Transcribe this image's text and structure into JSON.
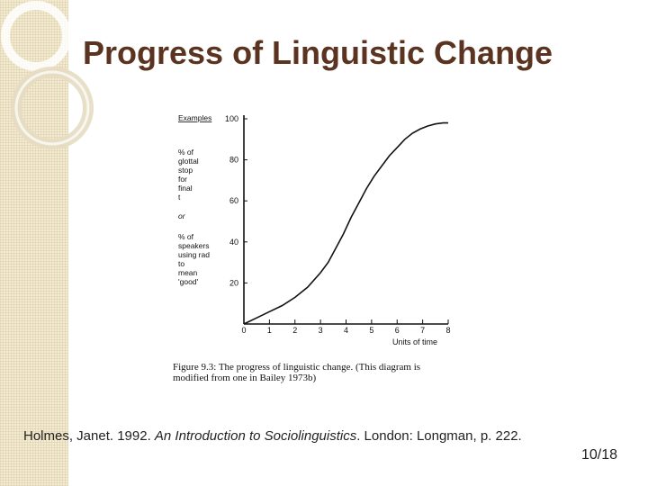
{
  "slide": {
    "title": "Progress of Linguistic Change",
    "page_number": "10/18"
  },
  "figure": {
    "ylabel_head": "Examples",
    "ylabel_lines_a": [
      "% of",
      "glottal",
      "stop",
      "for",
      "final",
      "t"
    ],
    "ylabel_or": "or",
    "ylabel_lines_b": [
      "% of",
      "speakers",
      "using rad",
      "to",
      "mean",
      "'good'"
    ],
    "caption_line1": "Figure 9.3:  The progress of linguistic change.  (This diagram is",
    "caption_line2": "modified from one in Bailey 1973b)"
  },
  "citation": {
    "before": "Holmes, Janet. 1992. ",
    "title": "An Introduction to Sociolinguistics",
    "after": ". London: Longman, p. 222."
  },
  "chart_data": {
    "type": "line",
    "xlabel": "Units of time",
    "ylabel": "Examples",
    "xlim": [
      0,
      8
    ],
    "ylim": [
      0,
      100
    ],
    "x_ticks": [
      0,
      1,
      2,
      3,
      4,
      5,
      6,
      7,
      8
    ],
    "y_ticks": [
      0,
      20,
      40,
      60,
      80,
      100
    ],
    "series": [
      {
        "x": [
          0,
          0.5,
          1,
          1.5,
          2,
          2.5,
          3,
          3.3,
          3.6,
          3.9,
          4.2,
          4.5,
          4.8,
          5.1,
          5.4,
          5.7,
          6,
          6.3,
          6.6,
          6.9,
          7.2,
          7.5,
          7.8,
          8
        ],
        "y": [
          0,
          3,
          6,
          9,
          13,
          18,
          25,
          30,
          37,
          44,
          52,
          59,
          66,
          72,
          77,
          82,
          86,
          90,
          93,
          95,
          96.5,
          97.5,
          98,
          98
        ]
      }
    ],
    "grid": false,
    "legend": "none"
  }
}
